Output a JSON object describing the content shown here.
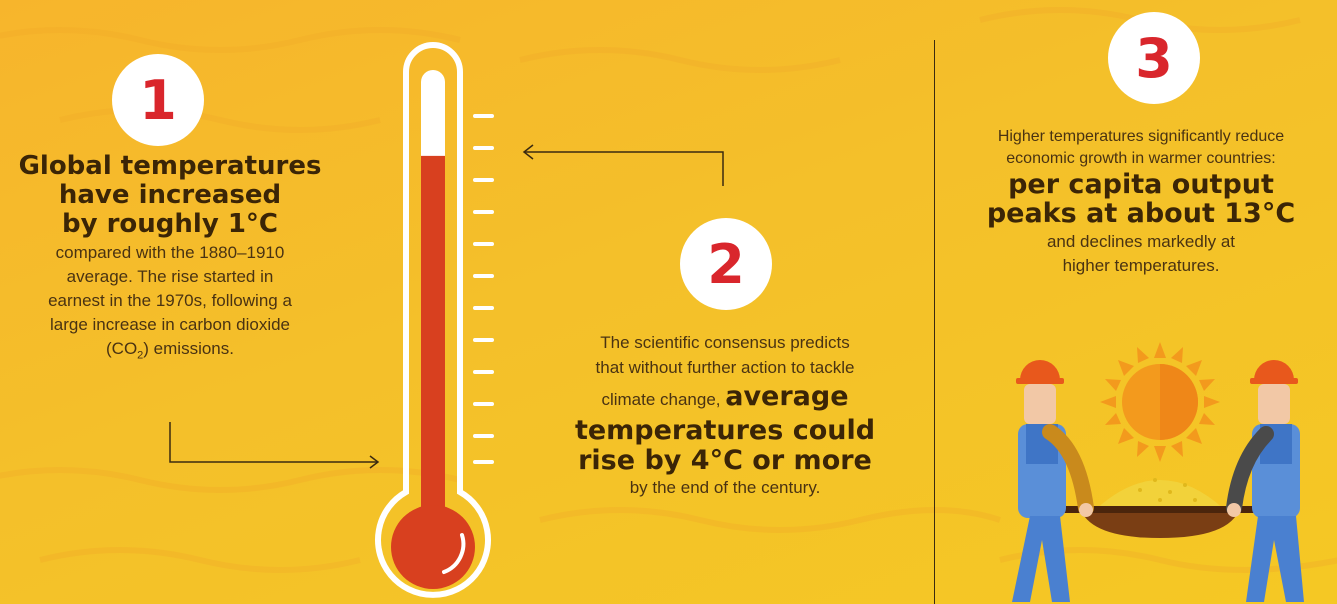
{
  "section1": {
    "number": "1",
    "headline": [
      "Global temperatures",
      "have increased",
      "by roughly 1°C"
    ],
    "body": [
      "compared with the 1880–1910",
      "average. The rise started in",
      "earnest in the 1970s, following a",
      "large increase in carbon dioxide"
    ],
    "co2_prefix": "(CO",
    "co2_sub": "2",
    "co2_suffix": ") emissions."
  },
  "section2": {
    "number": "2",
    "body": [
      "The scientific consensus predicts",
      "that without further action to tackle"
    ],
    "mixed_normal": "climate change, ",
    "mixed_bold": "average",
    "headline": [
      "temperatures could",
      "rise by 4°C or more"
    ],
    "tail": "by the end of the century."
  },
  "section3": {
    "number": "3",
    "body": [
      "Higher temperatures significantly reduce",
      "economic growth in warmer countries:"
    ],
    "headline": [
      "per capita output",
      "peaks at about 13°C"
    ],
    "tail": [
      "and declines markedly at",
      "higher temperatures."
    ]
  },
  "colors": {
    "badge_text": "#d9262c",
    "thermometer_fill": "#d8401f",
    "background": "#f5c02a"
  },
  "thermometer": {
    "fill_fraction": 0.81
  },
  "icons": [
    "thermometer-icon",
    "arrow-icon",
    "sun-icon",
    "worker-icon",
    "wheelbarrow-icon"
  ]
}
